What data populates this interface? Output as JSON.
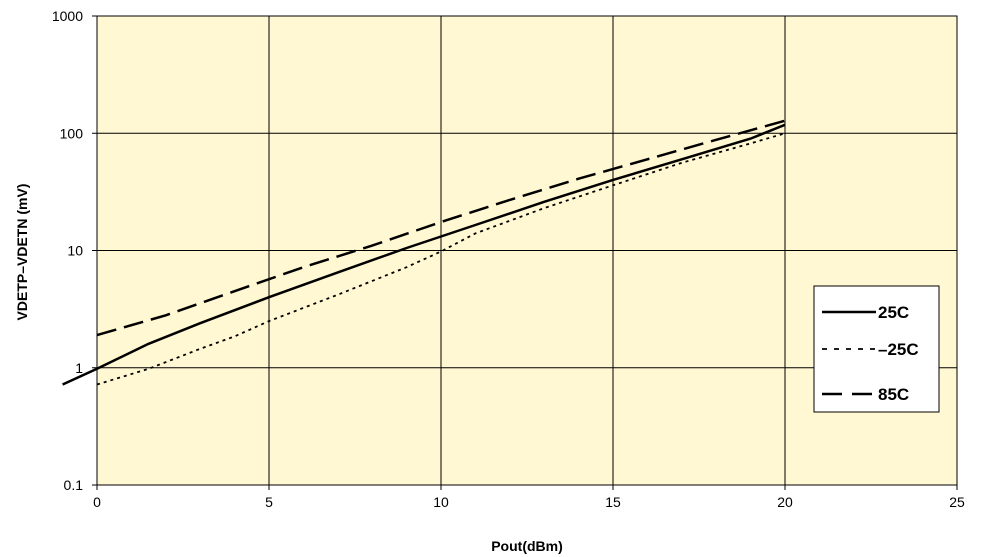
{
  "chart_data": {
    "type": "line",
    "xlabel": "Pout(dBm)",
    "ylabel": "VDETP–VDETN (mV)",
    "xlim": [
      0,
      25
    ],
    "ylim": [
      0.1,
      1000
    ],
    "yscale": "log",
    "xticks": [
      "0",
      "5",
      "10",
      "15",
      "20",
      "25"
    ],
    "yticks": [
      "0.1",
      "1",
      "10",
      "100",
      "1000"
    ],
    "grid": true,
    "legend_position": "right",
    "plot_background": "#FFF8D2",
    "series": [
      {
        "name": "25C",
        "style": "solid",
        "color": "#000000",
        "x": [
          -1,
          0,
          1.5,
          3,
          5,
          7,
          9,
          11,
          13,
          15,
          17,
          19,
          20
        ],
        "y": [
          0.72,
          0.98,
          1.6,
          2.4,
          4.0,
          6.5,
          10.5,
          16.5,
          26,
          40,
          60,
          90,
          118
        ]
      },
      {
        "name": "–25C",
        "style": "dotted",
        "color": "#000000",
        "x": [
          0,
          1.5,
          3,
          4,
          5,
          7,
          9,
          10,
          11,
          13,
          15,
          17,
          19,
          20
        ],
        "y": [
          0.72,
          0.98,
          1.45,
          1.85,
          2.5,
          4.2,
          7.2,
          9.8,
          14,
          23,
          36,
          56,
          82,
          100
        ]
      },
      {
        "name": "85C",
        "style": "dashed",
        "color": "#000000",
        "x": [
          0,
          2,
          4,
          6,
          8,
          10,
          12,
          14,
          16,
          18,
          20
        ],
        "y": [
          1.9,
          2.8,
          4.5,
          7.2,
          11,
          17.5,
          27,
          41,
          60,
          88,
          128
        ]
      }
    ]
  }
}
